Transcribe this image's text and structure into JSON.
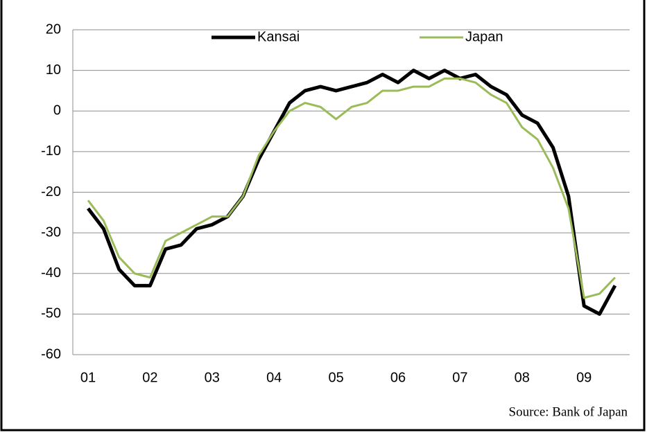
{
  "chart_data": {
    "type": "line",
    "categories": [
      "01",
      null,
      null,
      null,
      "02",
      null,
      null,
      null,
      "03",
      null,
      null,
      null,
      "04",
      null,
      null,
      null,
      "05",
      null,
      null,
      null,
      "06",
      null,
      null,
      null,
      "07",
      null,
      null,
      null,
      "08",
      null,
      null,
      null,
      "09",
      null,
      null
    ],
    "series": [
      {
        "name": "Kansai",
        "color": "#000000",
        "width": 5,
        "values": [
          -24,
          -29,
          -39,
          -43,
          -43,
          -34,
          -33,
          -29,
          -28,
          -26,
          -21,
          -12,
          -5,
          2,
          5,
          6,
          5,
          6,
          7,
          9,
          7,
          10,
          8,
          10,
          8,
          9,
          6,
          4,
          -1,
          -3,
          -9,
          -21,
          -48,
          -50,
          -43
        ]
      },
      {
        "name": "Japan",
        "color": "#9bbb59",
        "width": 3,
        "values": [
          -22,
          -27,
          -36,
          -40,
          -41,
          -32,
          -30,
          -28,
          -26,
          -26,
          -21,
          -11,
          -5,
          0,
          2,
          1,
          -2,
          1,
          2,
          5,
          5,
          6,
          6,
          8,
          8,
          7,
          4,
          2,
          -4,
          -7,
          -14,
          -24,
          -46,
          -45,
          -41
        ]
      }
    ],
    "ylim": [
      -60,
      20
    ],
    "yticks": [
      -60,
      -50,
      -40,
      -30,
      -20,
      -10,
      0,
      10,
      20
    ],
    "grid": true,
    "legend": "top",
    "source": "Source: Bank of Japan"
  }
}
